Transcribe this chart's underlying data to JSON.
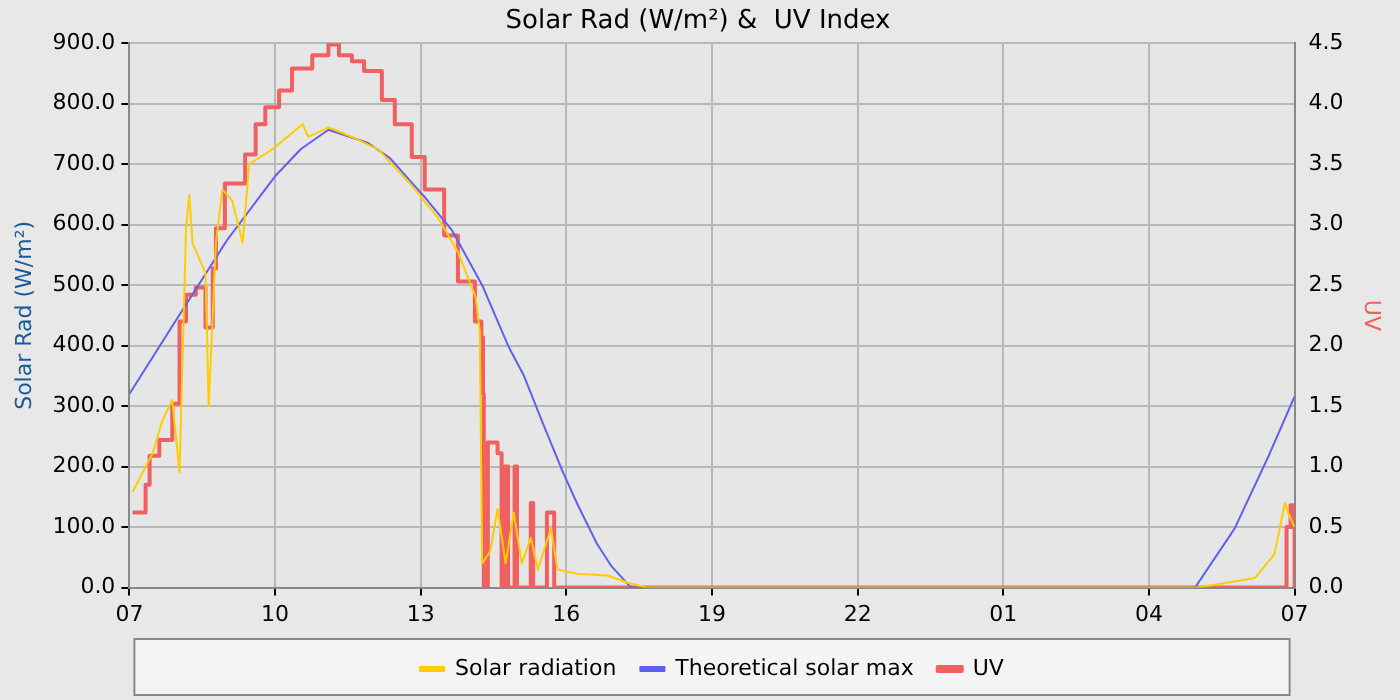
{
  "chart_data": {
    "type": "line",
    "title": "Solar Rad (W/m²) &  UV Index",
    "ylabel": "Solar Rad (W/m²)",
    "y2label": "UV",
    "xlim": [
      "--01-01T07:00",
      "--01-02T07:00"
    ],
    "xticks": [
      {
        "value": "--01-01T07:00",
        "label": "07"
      },
      {
        "value": "--01-01T10:00",
        "label": "10"
      },
      {
        "value": "--01-01T13:00",
        "label": "13"
      },
      {
        "value": "--01-01T16:00",
        "label": "16"
      },
      {
        "value": "--01-01T19:00",
        "label": "19"
      },
      {
        "value": "--01-01T22:00",
        "label": "22"
      },
      {
        "value": "--01-02T01:00",
        "label": "01"
      },
      {
        "value": "--01-02T04:00",
        "label": "04"
      },
      {
        "value": "--01-02T07:00",
        "label": "07"
      }
    ],
    "ylim": [
      0,
      900
    ],
    "yticks": [
      {
        "value": 0,
        "label": "0.0"
      },
      {
        "value": 100,
        "label": "100.0"
      },
      {
        "value": 200,
        "label": "200.0"
      },
      {
        "value": 300,
        "label": "300.0"
      },
      {
        "value": 400,
        "label": "400.0"
      },
      {
        "value": 500,
        "label": "500.0"
      },
      {
        "value": 600,
        "label": "600.0"
      },
      {
        "value": 700,
        "label": "700.0"
      },
      {
        "value": 800,
        "label": "800.0"
      },
      {
        "value": 900,
        "label": "900.0"
      }
    ],
    "y2lim": [
      0,
      4.5
    ],
    "y2ticks": [
      {
        "value": 0,
        "label": "0.0"
      },
      0.5,
      {
        "value": 1,
        "label": "1.0"
      },
      1.5,
      {
        "value": 2,
        "label": "2.0"
      },
      2.5,
      {
        "value": 3,
        "label": "3.0"
      },
      3.5,
      {
        "value": 4,
        "label": "4.0"
      },
      4.5
    ],
    "grid": true,
    "legend": "bottom",
    "marker": "none",
    "series": [
      {
        "name": "Solar radiation",
        "color": "#ffcc00",
        "x": [
          "--01-01T07:04",
          "--01-01T07:29",
          "--01-01T07:41",
          "--01-01T07:53",
          "--01-01T08:02",
          "--01-01T08:10",
          "--01-01T08:14",
          "--01-01T08:18",
          "--01-01T08:34",
          "--01-01T08:38",
          "--01-01T08:47",
          "--01-01T08:55",
          "--01-01T09:07",
          "--01-01T09:20",
          "--01-01T09:28",
          "--01-01T09:56",
          "--01-01T10:34",
          "--01-01T10:41",
          "--01-01T11:06",
          "--01-01T11:35",
          "--01-01T12:08",
          "--01-01T12:52",
          "--01-01T13:22",
          "--01-01T13:46",
          "--01-01T14:08",
          "--01-01T14:13",
          "--01-01T14:16",
          "--01-01T14:26",
          "--01-01T14:35",
          "--01-01T14:45",
          "--01-01T14:55",
          "--01-01T15:05",
          "--01-01T15:16",
          "--01-01T15:25",
          "--01-01T15:41",
          "--01-01T15:49",
          "--01-01T16:14",
          "--01-01T16:51",
          "--01-01T17:16",
          "--01-01T17:40",
          "--01-02T05:00",
          "--01-02T05:46",
          "--01-02T06:11",
          "--01-02T06:35",
          "--01-02T06:48",
          "--01-02T06:53",
          "--01-02T07:00"
        ],
        "values": [
          158,
          223,
          277,
          310,
          190,
          593,
          650,
          570,
          520,
          300,
          570,
          658,
          640,
          570,
          700,
          724,
          766,
          745,
          761,
          745,
          724,
          660,
          610,
          555,
          480,
          424,
          40,
          60,
          130,
          40,
          124,
          40,
          82,
          30,
          98,
          30,
          23,
          20,
          8,
          0,
          0,
          10,
          16,
          55,
          140,
          120,
          100
        ]
      },
      {
        "name": "Theoretical solar max",
        "color": "#6060f0",
        "x": [
          "--01-01T07:00",
          "--01-01T07:59",
          "--01-01T09:01",
          "--01-01T10:00",
          "--01-01T10:32",
          "--01-01T11:06",
          "--01-01T11:55",
          "--01-01T12:22",
          "--01-01T12:52",
          "--01-01T13:04",
          "--01-01T13:39",
          "--01-01T14:16",
          "--01-01T14:48",
          "--01-01T15:07",
          "--01-01T15:30",
          "--01-01T15:56",
          "--01-01T16:14",
          "--01-01T16:38",
          "--01-01T16:56",
          "--01-01T17:20",
          "--01-02T04:57",
          "--01-02T05:46",
          "--01-02T06:28",
          "--01-02T07:00"
        ],
        "values": [
          320,
          445,
          575,
          680,
          725,
          757,
          735,
          710,
          665,
          647,
          590,
          500,
          400,
          352,
          275,
          190,
          137,
          72,
          35,
          0,
          0,
          98,
          218,
          316
        ]
      },
      {
        "name": "UV",
        "color": "#f06060",
        "type": "step",
        "axis": "y2",
        "x": [
          "--01-01T07:04",
          "--01-01T07:20",
          "--01-01T07:25",
          "--01-01T07:37",
          "--01-01T07:53",
          "--01-01T08:02",
          "--01-01T08:10",
          "--01-01T08:22",
          "--01-01T08:34",
          "--01-01T08:43",
          "--01-01T08:47",
          "--01-01T08:58",
          "--01-01T09:23",
          "--01-01T09:36",
          "--01-01T09:48",
          "--01-01T10:05",
          "--01-01T10:21",
          "--01-01T10:46",
          "--01-01T11:06",
          "--01-01T11:19",
          "--01-01T11:35",
          "--01-01T11:50",
          "--01-01T12:12",
          "--01-01T12:28",
          "--01-01T12:49",
          "--01-01T13:05",
          "--01-01T13:29",
          "--01-01T13:46",
          "--01-01T14:07",
          "--01-01T14:15",
          "--01-01T14:17",
          "--01-01T14:18",
          "--01-01T14:23",
          "--01-01T14:30",
          "--01-01T14:35",
          "--01-01T14:40",
          "--01-01T14:44",
          "--01-01T14:48",
          "--01-01T14:56",
          "--01-01T14:59",
          "--01-01T15:16",
          "--01-01T15:19",
          "--01-01T15:36",
          "--01-01T15:42",
          "--01-01T15:45",
          "--01-02T06:50",
          "--01-02T06:55",
          "--01-02T06:58",
          "--01-02T07:00"
        ],
        "values": [
          0.62,
          0.85,
          1.09,
          1.22,
          1.52,
          2.2,
          2.42,
          2.48,
          2.15,
          2.64,
          2.97,
          3.34,
          3.58,
          3.83,
          3.97,
          4.11,
          4.29,
          4.4,
          4.49,
          4.4,
          4.35,
          4.27,
          4.03,
          3.83,
          3.56,
          3.29,
          2.91,
          2.53,
          2.2,
          2.07,
          1.6,
          0,
          1.2,
          1.2,
          1.11,
          0,
          1.0,
          0,
          1.0,
          0,
          0.7,
          0,
          0.62,
          0.62,
          0,
          0.5,
          0.68,
          0.5,
          0
        ]
      }
    ]
  }
}
